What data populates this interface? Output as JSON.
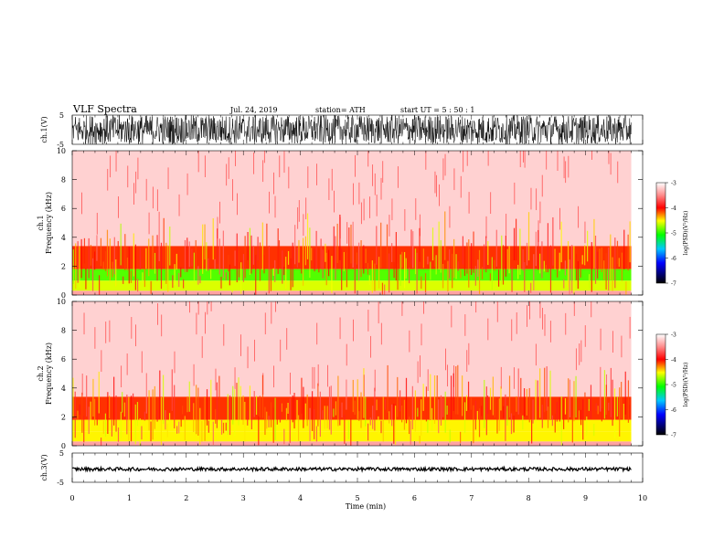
{
  "header": {
    "title": "VLF Spectra",
    "date": "Jul. 24, 2019",
    "station": "station= ATH",
    "start": "start UT =  5 : 50 : 1"
  },
  "chart_data": [
    {
      "type": "line",
      "name": "ch1-waveform",
      "ylabel": "ch.1(V)",
      "ylim": [
        -5,
        5
      ],
      "yticks": [
        "5",
        "-5"
      ],
      "xlim": [
        0,
        10
      ],
      "data_extent_min": 9.8,
      "envelope": {
        "min": -5,
        "max": 5
      }
    },
    {
      "type": "heatmap",
      "name": "ch1-spectrogram",
      "ylabel": "ch.1\nFrequency (kHz)",
      "xlim": [
        0,
        10
      ],
      "ylim": [
        0,
        10
      ],
      "yticks": [
        "0",
        "2",
        "4",
        "6",
        "8",
        "10"
      ],
      "data_extent_min": 9.8,
      "bands": [
        {
          "f_from": 0,
          "f_to": 0.3,
          "logpsd": -3.4
        },
        {
          "f_from": 0.3,
          "f_to": 1.0,
          "logpsd": -4.6
        },
        {
          "f_from": 1.0,
          "f_to": 1.8,
          "logpsd": -4.9
        },
        {
          "f_from": 1.8,
          "f_to": 3.4,
          "logpsd": -4.1
        },
        {
          "f_from": 3.4,
          "f_to": 10,
          "logpsd": -3.2
        }
      ],
      "colorbar": {
        "label": "log(PSD)(V²/Hz)",
        "range": [
          -7,
          -3
        ],
        "ticks": [
          "-3",
          "-4",
          "-5",
          "-6",
          "-7"
        ]
      }
    },
    {
      "type": "heatmap",
      "name": "ch2-spectrogram",
      "ylabel": "ch.2\nFrequency (kHz)",
      "xlim": [
        0,
        10
      ],
      "ylim": [
        0,
        10
      ],
      "yticks": [
        "0",
        "2",
        "4",
        "6",
        "8",
        "10"
      ],
      "data_extent_min": 9.8,
      "bands": [
        {
          "f_from": 0,
          "f_to": 0.3,
          "logpsd": -3.4
        },
        {
          "f_from": 0.3,
          "f_to": 1.0,
          "logpsd": -4.5
        },
        {
          "f_from": 1.0,
          "f_to": 1.8,
          "logpsd": -4.5
        },
        {
          "f_from": 1.8,
          "f_to": 3.4,
          "logpsd": -4.1
        },
        {
          "f_from": 3.4,
          "f_to": 10,
          "logpsd": -3.2
        }
      ],
      "colorbar": {
        "label": "log(PSD)(V²/Hz)",
        "range": [
          -7,
          -3
        ],
        "ticks": [
          "-3",
          "-4",
          "-5",
          "-6",
          "-7"
        ]
      }
    },
    {
      "type": "line",
      "name": "ch3-waveform",
      "ylabel": "ch.3(V)",
      "ylim": [
        -5,
        5
      ],
      "yticks": [
        "5",
        "-5"
      ],
      "xlim": [
        0,
        10
      ],
      "data_extent_min": 9.8,
      "level": -0.5
    }
  ],
  "x_axis": {
    "label": "Time (min)",
    "ticks": [
      "0",
      "1",
      "2",
      "3",
      "4",
      "5",
      "6",
      "7",
      "8",
      "9",
      "10"
    ]
  }
}
